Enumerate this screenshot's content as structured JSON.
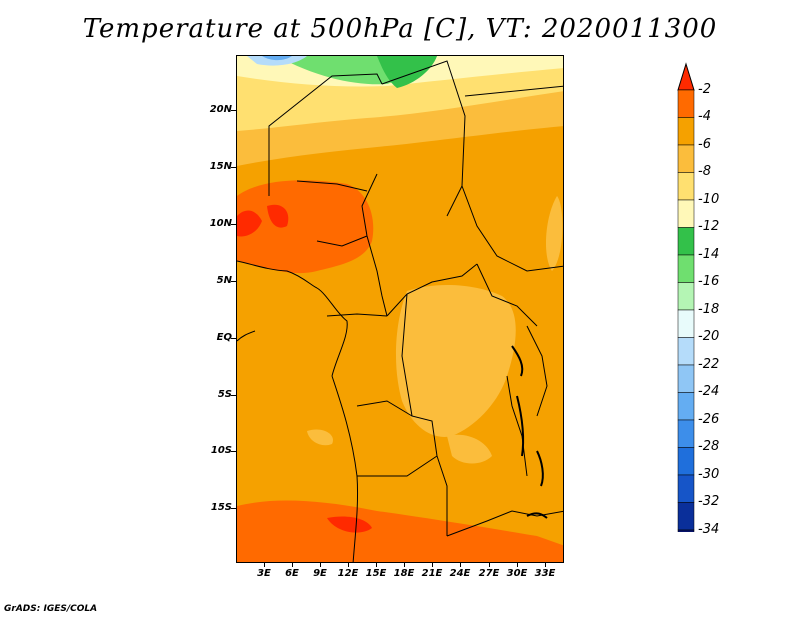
{
  "title": "Temperature at 500hPa [C], VT: 2020011300",
  "footer": "GrADS: IGES/COLA",
  "lat_labels": [
    "20N",
    "15N",
    "10N",
    "5N",
    "EQ",
    "5S",
    "10S",
    "15S"
  ],
  "lon_labels": [
    "3E",
    "6E",
    "9E",
    "12E",
    "15E",
    "18E",
    "21E",
    "24E",
    "27E",
    "30E",
    "33E"
  ],
  "colorbar": {
    "labels": [
      "-2",
      "-4",
      "-6",
      "-8",
      "-10",
      "-12",
      "-14",
      "-16",
      "-18",
      "-20",
      "-22",
      "-24",
      "-26",
      "-28",
      "-30",
      "-32",
      "-34"
    ],
    "colors": [
      "#ff2a00",
      "#ff6a00",
      "#f5a100",
      "#fbbd3c",
      "#ffe070",
      "#fff8b8",
      "#33c14a",
      "#6fdf6f",
      "#b4f5b4",
      "#e8fbfb",
      "#b5dcfa",
      "#8fc6f5",
      "#64adf2",
      "#3d8eea",
      "#1f6fdc",
      "#1655c8",
      "#0a2f9a",
      "#06126a",
      "#dcdcf5"
    ]
  }
}
